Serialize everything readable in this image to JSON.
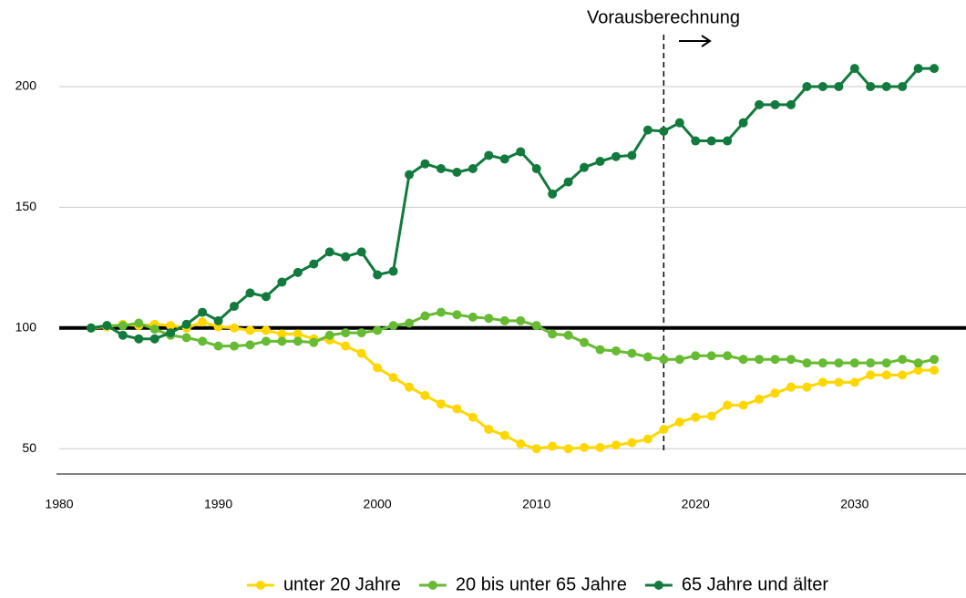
{
  "chart_data": {
    "type": "line",
    "annotation": "Vorausberechnung",
    "forecast_start": 2018,
    "reference_line": 100,
    "x": [
      1982,
      1983,
      1984,
      1985,
      1986,
      1987,
      1988,
      1989,
      1990,
      1991,
      1992,
      1993,
      1994,
      1995,
      1996,
      1997,
      1998,
      1999,
      2000,
      2001,
      2002,
      2003,
      2004,
      2005,
      2006,
      2007,
      2008,
      2009,
      2010,
      2011,
      2012,
      2013,
      2014,
      2015,
      2016,
      2017,
      2018,
      2019,
      2020,
      2021,
      2022,
      2023,
      2024,
      2025,
      2026,
      2027,
      2028,
      2029,
      2030,
      2031,
      2032,
      2033,
      2034,
      2035
    ],
    "series": [
      {
        "name": "unter 20 Jahre",
        "color": "#ffd700",
        "values": [
          100,
          100.5,
          101.5,
          101,
          101.5,
          101,
          100,
          102.5,
          100.5,
          100,
          99,
          99,
          97.5,
          97.5,
          95.5,
          95,
          92.5,
          89.5,
          83.5,
          79.5,
          75.5,
          72,
          68.5,
          66.5,
          63,
          58,
          55.5,
          52,
          50,
          51,
          50,
          50.5,
          50.5,
          51.5,
          52.5,
          54,
          58,
          61,
          63,
          63.5,
          68,
          68,
          70.5,
          73,
          75.5,
          75.5,
          77.5,
          77.5,
          77.5,
          80.5,
          80.5,
          80.5,
          82.5,
          82.5
        ]
      },
      {
        "name": "20 bis unter 65 Jahre",
        "color": "#66bb33",
        "values": [
          100,
          101,
          101,
          102,
          99.5,
          97,
          96,
          94.5,
          92.5,
          92.5,
          93,
          94.5,
          94.5,
          94.5,
          94,
          97,
          98,
          98,
          99,
          101,
          102,
          105,
          106.5,
          105.5,
          104.5,
          104,
          103,
          103,
          101,
          97.5,
          97,
          94,
          91,
          90.5,
          89.5,
          88,
          87,
          87,
          88.5,
          88.5,
          88.5,
          87,
          87,
          87,
          87,
          85.5,
          85.5,
          85.5,
          85.5,
          85.5,
          85.5,
          87,
          85.5,
          87
        ]
      },
      {
        "name": "65 Jahre und älter",
        "color": "#117a3c",
        "values": [
          100,
          101,
          97,
          95.5,
          95.5,
          98,
          101.5,
          106.5,
          103,
          109,
          114.5,
          113,
          119,
          123,
          126.5,
          131.5,
          129.5,
          131.5,
          122,
          123.5,
          163.5,
          168,
          166,
          164.5,
          166,
          171.5,
          170,
          173,
          166,
          155.5,
          160.5,
          166.5,
          169,
          171,
          171.5,
          182,
          181.5,
          185,
          177.5,
          177.5,
          177.5,
          185,
          192.5,
          192.5,
          192.5,
          200,
          200,
          200,
          207.5,
          200,
          200,
          200,
          207.5,
          207.5
        ]
      }
    ],
    "xlim": [
      1980,
      2037
    ],
    "xticks": [
      1980,
      1990,
      2000,
      2010,
      2020,
      2030
    ],
    "ylim": [
      39.5,
      220
    ],
    "yticks": [
      50,
      100,
      150,
      200
    ],
    "grid": true
  }
}
